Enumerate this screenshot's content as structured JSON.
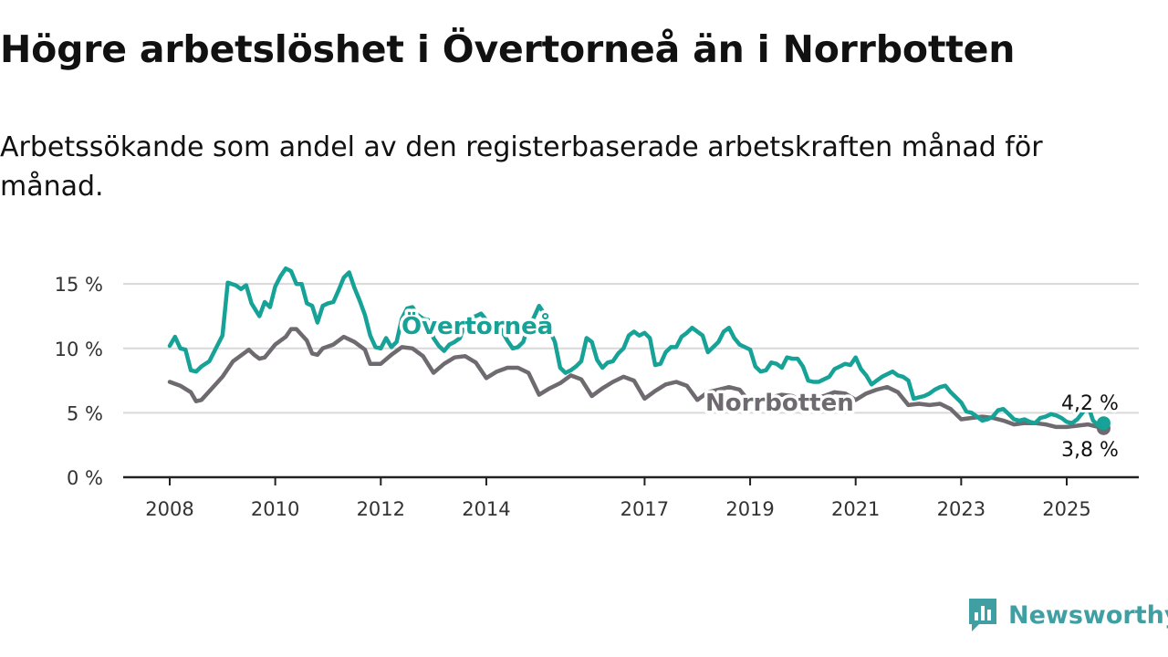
{
  "header": {
    "title": "Högre arbetslöshet i Övertorneå än i Norrbotten",
    "subtitle": "Arbetssökande som andel av den registerbaserade arbetskraften månad för månad."
  },
  "brand": {
    "name": "Newsworthy",
    "icon": "bar-chart-logo-icon",
    "color": "#3f9fa2"
  },
  "chart_data": {
    "type": "line",
    "x_tick_labels": [
      "2008",
      "2010",
      "2012",
      "2014",
      "2017",
      "2019",
      "2021",
      "2023",
      "2025"
    ],
    "y_tick_labels": [
      "0 %",
      "5 %",
      "10 %",
      "15 %"
    ],
    "ylim": [
      0,
      16.5
    ],
    "xlim": [
      2007.5,
      2026.35
    ],
    "grid": "horizontal",
    "series": [
      {
        "name": "Övertorneå",
        "color": "#16a297",
        "end_label": "4,2 %",
        "points": [
          [
            2008.0,
            10.2
          ],
          [
            2008.1,
            10.9
          ],
          [
            2008.2,
            10.0
          ],
          [
            2008.3,
            9.9
          ],
          [
            2008.4,
            8.3
          ],
          [
            2008.5,
            8.2
          ],
          [
            2008.6,
            8.6
          ],
          [
            2008.75,
            9.0
          ],
          [
            2008.9,
            10.2
          ],
          [
            2009.0,
            11.0
          ],
          [
            2009.1,
            15.1
          ],
          [
            2009.25,
            14.9
          ],
          [
            2009.35,
            14.6
          ],
          [
            2009.45,
            14.9
          ],
          [
            2009.55,
            13.5
          ],
          [
            2009.7,
            12.5
          ],
          [
            2009.8,
            13.6
          ],
          [
            2009.9,
            13.2
          ],
          [
            2010.0,
            14.8
          ],
          [
            2010.1,
            15.6
          ],
          [
            2010.2,
            16.2
          ],
          [
            2010.3,
            16.0
          ],
          [
            2010.4,
            15.0
          ],
          [
            2010.5,
            15.0
          ],
          [
            2010.6,
            13.5
          ],
          [
            2010.7,
            13.3
          ],
          [
            2010.8,
            12.0
          ],
          [
            2010.9,
            13.3
          ],
          [
            2011.0,
            13.5
          ],
          [
            2011.1,
            13.6
          ],
          [
            2011.2,
            14.5
          ],
          [
            2011.3,
            15.5
          ],
          [
            2011.4,
            15.9
          ],
          [
            2011.5,
            14.7
          ],
          [
            2011.6,
            13.7
          ],
          [
            2011.7,
            12.6
          ],
          [
            2011.8,
            11.0
          ],
          [
            2011.9,
            10.1
          ],
          [
            2012.0,
            10.0
          ],
          [
            2012.1,
            10.8
          ],
          [
            2012.2,
            10.1
          ],
          [
            2012.3,
            10.5
          ],
          [
            2012.4,
            12.3
          ],
          [
            2012.5,
            13.1
          ],
          [
            2012.6,
            13.2
          ],
          [
            2012.7,
            12.6
          ],
          [
            2012.8,
            12.3
          ],
          [
            2012.9,
            12.2
          ],
          [
            2013.0,
            10.8
          ],
          [
            2013.1,
            10.2
          ],
          [
            2013.2,
            9.8
          ],
          [
            2013.3,
            10.3
          ],
          [
            2013.4,
            10.5
          ],
          [
            2013.5,
            10.8
          ],
          [
            2013.6,
            12.0
          ],
          [
            2013.7,
            12.4
          ],
          [
            2013.8,
            12.5
          ],
          [
            2013.9,
            12.7
          ],
          [
            2014.0,
            12.2
          ],
          [
            2014.1,
            11.5
          ],
          [
            2014.2,
            12.0
          ],
          [
            2014.3,
            11.3
          ],
          [
            2014.4,
            10.6
          ],
          [
            2014.5,
            10.0
          ],
          [
            2014.6,
            10.1
          ],
          [
            2014.7,
            10.5
          ],
          [
            2014.8,
            11.8
          ],
          [
            2014.9,
            12.4
          ],
          [
            2015.0,
            13.3
          ],
          [
            2015.1,
            12.7
          ],
          [
            2015.2,
            11.4
          ],
          [
            2015.3,
            10.5
          ],
          [
            2015.4,
            8.5
          ],
          [
            2015.5,
            8.1
          ],
          [
            2015.6,
            8.3
          ],
          [
            2015.7,
            8.6
          ],
          [
            2015.8,
            9.0
          ],
          [
            2015.9,
            10.8
          ],
          [
            2016.0,
            10.5
          ],
          [
            2016.1,
            9.1
          ],
          [
            2016.2,
            8.5
          ],
          [
            2016.3,
            8.9
          ],
          [
            2016.4,
            9.0
          ],
          [
            2016.5,
            9.6
          ],
          [
            2016.6,
            10.0
          ],
          [
            2016.7,
            11.0
          ],
          [
            2016.8,
            11.3
          ],
          [
            2016.9,
            11.0
          ],
          [
            2017.0,
            11.2
          ],
          [
            2017.1,
            10.8
          ],
          [
            2017.2,
            8.7
          ],
          [
            2017.3,
            8.8
          ],
          [
            2017.4,
            9.7
          ],
          [
            2017.5,
            10.1
          ],
          [
            2017.6,
            10.1
          ],
          [
            2017.7,
            10.9
          ],
          [
            2017.8,
            11.2
          ],
          [
            2017.9,
            11.6
          ],
          [
            2018.0,
            11.3
          ],
          [
            2018.1,
            11.0
          ],
          [
            2018.2,
            9.7
          ],
          [
            2018.3,
            10.1
          ],
          [
            2018.4,
            10.5
          ],
          [
            2018.5,
            11.3
          ],
          [
            2018.6,
            11.6
          ],
          [
            2018.7,
            10.8
          ],
          [
            2018.8,
            10.3
          ],
          [
            2018.9,
            10.1
          ],
          [
            2019.0,
            9.9
          ],
          [
            2019.1,
            8.6
          ],
          [
            2019.2,
            8.2
          ],
          [
            2019.3,
            8.3
          ],
          [
            2019.4,
            8.9
          ],
          [
            2019.5,
            8.8
          ],
          [
            2019.6,
            8.5
          ],
          [
            2019.7,
            9.3
          ],
          [
            2019.8,
            9.2
          ],
          [
            2019.9,
            9.2
          ],
          [
            2020.0,
            8.6
          ],
          [
            2020.1,
            7.5
          ],
          [
            2020.2,
            7.4
          ],
          [
            2020.3,
            7.4
          ],
          [
            2020.4,
            7.6
          ],
          [
            2020.5,
            7.8
          ],
          [
            2020.6,
            8.4
          ],
          [
            2020.7,
            8.6
          ],
          [
            2020.8,
            8.8
          ],
          [
            2020.9,
            8.7
          ],
          [
            2021.0,
            9.3
          ],
          [
            2021.1,
            8.4
          ],
          [
            2021.2,
            7.9
          ],
          [
            2021.3,
            7.2
          ],
          [
            2021.4,
            7.5
          ],
          [
            2021.5,
            7.8
          ],
          [
            2021.6,
            8.0
          ],
          [
            2021.7,
            8.2
          ],
          [
            2021.8,
            7.9
          ],
          [
            2021.9,
            7.8
          ],
          [
            2022.0,
            7.5
          ],
          [
            2022.1,
            6.1
          ],
          [
            2022.2,
            6.2
          ],
          [
            2022.3,
            6.3
          ],
          [
            2022.4,
            6.5
          ],
          [
            2022.5,
            6.8
          ],
          [
            2022.6,
            7.0
          ],
          [
            2022.7,
            7.1
          ],
          [
            2022.8,
            6.6
          ],
          [
            2022.9,
            6.2
          ],
          [
            2023.0,
            5.8
          ],
          [
            2023.1,
            5.1
          ],
          [
            2023.2,
            5.0
          ],
          [
            2023.3,
            4.7
          ],
          [
            2023.4,
            4.4
          ],
          [
            2023.5,
            4.5
          ],
          [
            2023.6,
            4.7
          ],
          [
            2023.7,
            5.2
          ],
          [
            2023.8,
            5.3
          ],
          [
            2023.9,
            4.9
          ],
          [
            2024.0,
            4.5
          ],
          [
            2024.1,
            4.4
          ],
          [
            2024.2,
            4.5
          ],
          [
            2024.3,
            4.3
          ],
          [
            2024.4,
            4.2
          ],
          [
            2024.5,
            4.6
          ],
          [
            2024.6,
            4.7
          ],
          [
            2024.7,
            4.9
          ],
          [
            2024.8,
            4.8
          ],
          [
            2024.9,
            4.6
          ],
          [
            2025.0,
            4.3
          ],
          [
            2025.1,
            4.2
          ],
          [
            2025.2,
            4.5
          ],
          [
            2025.3,
            5.0
          ],
          [
            2025.4,
            5.6
          ],
          [
            2025.5,
            4.4
          ],
          [
            2025.6,
            4.0
          ],
          [
            2025.7,
            4.2
          ]
        ]
      },
      {
        "name": "Norrbotten",
        "color": "#6e6a70",
        "end_label": "3,8 %",
        "points": [
          [
            2008.0,
            7.4
          ],
          [
            2008.2,
            7.1
          ],
          [
            2008.4,
            6.6
          ],
          [
            2008.5,
            5.9
          ],
          [
            2008.6,
            6.0
          ],
          [
            2008.8,
            6.9
          ],
          [
            2009.0,
            7.8
          ],
          [
            2009.2,
            9.0
          ],
          [
            2009.4,
            9.6
          ],
          [
            2009.5,
            9.9
          ],
          [
            2009.6,
            9.5
          ],
          [
            2009.7,
            9.2
          ],
          [
            2009.8,
            9.3
          ],
          [
            2010.0,
            10.3
          ],
          [
            2010.2,
            10.9
          ],
          [
            2010.3,
            11.5
          ],
          [
            2010.4,
            11.5
          ],
          [
            2010.6,
            10.6
          ],
          [
            2010.7,
            9.6
          ],
          [
            2010.8,
            9.5
          ],
          [
            2010.9,
            10.0
          ],
          [
            2011.1,
            10.3
          ],
          [
            2011.3,
            10.9
          ],
          [
            2011.5,
            10.5
          ],
          [
            2011.7,
            9.9
          ],
          [
            2011.8,
            8.8
          ],
          [
            2012.0,
            8.8
          ],
          [
            2012.2,
            9.5
          ],
          [
            2012.4,
            10.1
          ],
          [
            2012.6,
            10.0
          ],
          [
            2012.8,
            9.4
          ],
          [
            2013.0,
            8.1
          ],
          [
            2013.2,
            8.8
          ],
          [
            2013.4,
            9.3
          ],
          [
            2013.6,
            9.4
          ],
          [
            2013.8,
            8.9
          ],
          [
            2014.0,
            7.7
          ],
          [
            2014.2,
            8.2
          ],
          [
            2014.4,
            8.5
          ],
          [
            2014.6,
            8.5
          ],
          [
            2014.8,
            8.1
          ],
          [
            2015.0,
            6.4
          ],
          [
            2015.2,
            6.9
          ],
          [
            2015.4,
            7.3
          ],
          [
            2015.6,
            7.9
          ],
          [
            2015.8,
            7.6
          ],
          [
            2016.0,
            6.3
          ],
          [
            2016.2,
            6.9
          ],
          [
            2016.4,
            7.4
          ],
          [
            2016.6,
            7.8
          ],
          [
            2016.8,
            7.5
          ],
          [
            2017.0,
            6.1
          ],
          [
            2017.2,
            6.7
          ],
          [
            2017.4,
            7.2
          ],
          [
            2017.6,
            7.4
          ],
          [
            2017.8,
            7.1
          ],
          [
            2018.0,
            6.0
          ],
          [
            2018.2,
            6.6
          ],
          [
            2018.4,
            6.8
          ],
          [
            2018.6,
            7.0
          ],
          [
            2018.8,
            6.8
          ],
          [
            2019.0,
            5.8
          ],
          [
            2019.2,
            6.0
          ],
          [
            2019.4,
            6.2
          ],
          [
            2019.6,
            6.4
          ],
          [
            2019.8,
            6.3
          ],
          [
            2020.0,
            5.9
          ],
          [
            2020.2,
            6.1
          ],
          [
            2020.4,
            6.3
          ],
          [
            2020.6,
            6.6
          ],
          [
            2020.8,
            6.5
          ],
          [
            2021.0,
            6.0
          ],
          [
            2021.2,
            6.5
          ],
          [
            2021.4,
            6.8
          ],
          [
            2021.6,
            7.0
          ],
          [
            2021.8,
            6.6
          ],
          [
            2022.0,
            5.6
          ],
          [
            2022.2,
            5.7
          ],
          [
            2022.4,
            5.6
          ],
          [
            2022.6,
            5.7
          ],
          [
            2022.8,
            5.3
          ],
          [
            2023.0,
            4.5
          ],
          [
            2023.2,
            4.6
          ],
          [
            2023.4,
            4.7
          ],
          [
            2023.6,
            4.6
          ],
          [
            2023.8,
            4.4
          ],
          [
            2024.0,
            4.1
          ],
          [
            2024.2,
            4.2
          ],
          [
            2024.4,
            4.2
          ],
          [
            2024.6,
            4.1
          ],
          [
            2024.8,
            3.9
          ],
          [
            2025.0,
            3.9
          ],
          [
            2025.2,
            4.0
          ],
          [
            2025.4,
            4.1
          ],
          [
            2025.6,
            3.9
          ],
          [
            2025.7,
            3.8
          ]
        ]
      }
    ]
  }
}
